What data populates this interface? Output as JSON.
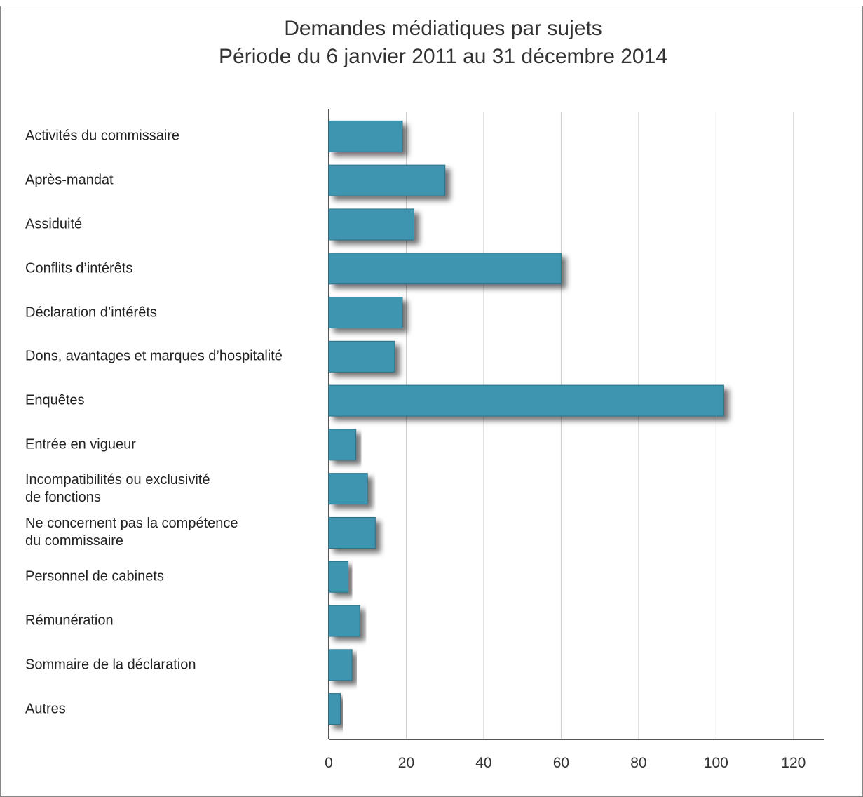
{
  "chart_data": {
    "type": "bar",
    "orientation": "horizontal",
    "title": "Demandes médiatiques par sujets",
    "subtitle": "Période du 6 janvier 2011 au 31 décembre 2014",
    "categories": [
      "Activités du commissaire",
      "Après-mandat",
      "Assiduité",
      "Conflits d’intérêts",
      "Déclaration d’intérêts",
      "Dons, avantages et marques d’hospitalité",
      "Enquêtes",
      "Entrée en vigueur",
      "Incompatibilités ou exclusivité\nde fonctions",
      "Ne concernent pas la compétence\ndu commissaire",
      "Personnel de cabinets",
      "Rémunération",
      "Sommaire de la déclaration",
      "Autres"
    ],
    "values": [
      19,
      30,
      22,
      60,
      19,
      17,
      102,
      7,
      10,
      12,
      5,
      8,
      6,
      3
    ],
    "color": "#3d95b0",
    "xlim": [
      0,
      128
    ],
    "xticks": [
      0,
      20,
      40,
      60,
      80,
      100,
      120
    ],
    "grid": true
  }
}
